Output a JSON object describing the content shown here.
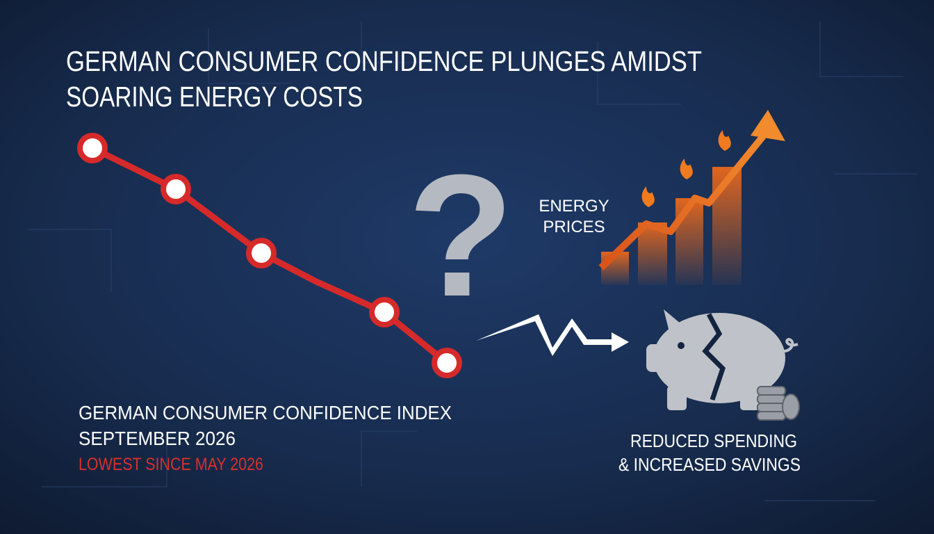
{
  "header": {
    "title_lines": [
      "GERMAN CONSUMER CONFIDENCE PLUNGES AMIDST",
      "SOARING ENERGY COSTS"
    ]
  },
  "question_mark": "?",
  "energy": {
    "label_lines": [
      "ENERGY",
      "PRICES"
    ]
  },
  "index": {
    "name": "GERMAN CONSUMER CONFIDENCE INDEX",
    "date": "SEPTEMBER 2026",
    "note": "LOWEST SINCE MAY 2026"
  },
  "savings": {
    "label_lines": [
      "REDUCED SPENDING",
      "& INCREASED SAVINGS"
    ]
  }
}
